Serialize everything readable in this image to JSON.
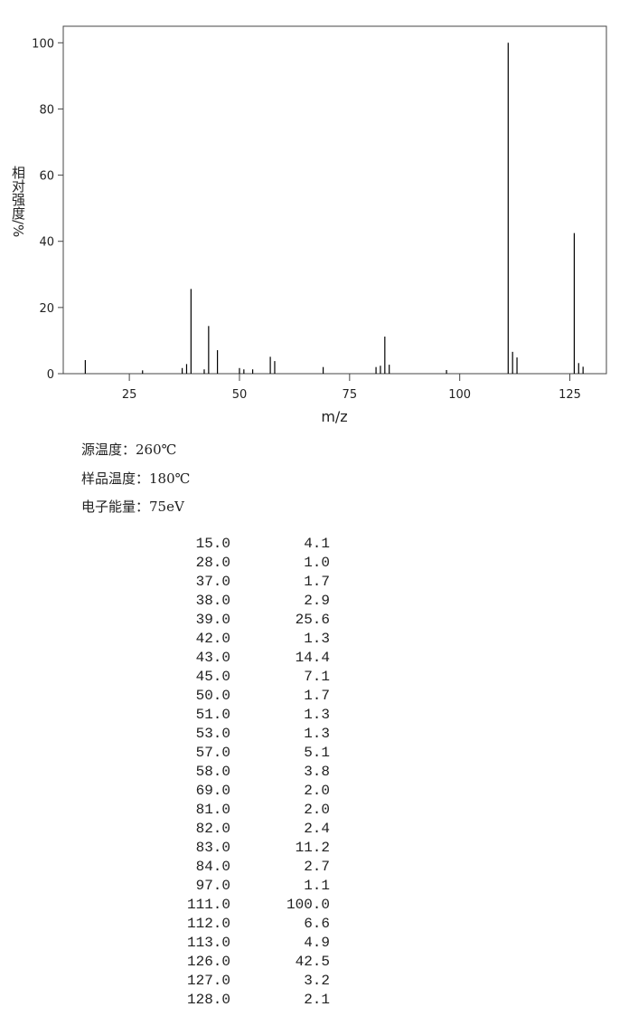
{
  "chart_data": {
    "type": "stick",
    "x_label": "m/z",
    "y_label": "相对强度/%",
    "x": [
      15,
      28,
      37,
      38,
      39,
      42,
      43,
      45,
      50,
      51,
      53,
      57,
      58,
      69,
      81,
      82,
      83,
      84,
      97,
      111,
      112,
      113,
      126,
      127,
      128
    ],
    "values": [
      4.1,
      1.0,
      1.7,
      2.9,
      25.6,
      1.3,
      14.4,
      7.1,
      1.7,
      1.3,
      1.3,
      5.1,
      3.8,
      2.0,
      2.0,
      2.4,
      11.2,
      2.7,
      1.1,
      100.0,
      6.6,
      4.9,
      42.5,
      3.2,
      2.1
    ],
    "color": "#000000",
    "xlim": [
      10,
      133.3
    ],
    "ylim": [
      0,
      105
    ],
    "xticks": [
      25,
      50,
      75,
      100,
      125
    ],
    "yticks": [
      0,
      20,
      40,
      60,
      80,
      100
    ]
  },
  "conditions": [
    "源温度：260℃",
    "样品温度：180℃",
    "电子能量：75eV"
  ],
  "peak_table": {
    "rows": [
      [
        "15.0",
        "4.1"
      ],
      [
        "28.0",
        "1.0"
      ],
      [
        "37.0",
        "1.7"
      ],
      [
        "38.0",
        "2.9"
      ],
      [
        "39.0",
        "25.6"
      ],
      [
        "42.0",
        "1.3"
      ],
      [
        "43.0",
        "14.4"
      ],
      [
        "45.0",
        "7.1"
      ],
      [
        "50.0",
        "1.7"
      ],
      [
        "51.0",
        "1.3"
      ],
      [
        "53.0",
        "1.3"
      ],
      [
        "57.0",
        "5.1"
      ],
      [
        "58.0",
        "3.8"
      ],
      [
        "69.0",
        "2.0"
      ],
      [
        "81.0",
        "2.0"
      ],
      [
        "82.0",
        "2.4"
      ],
      [
        "83.0",
        "11.2"
      ],
      [
        "84.0",
        "2.7"
      ],
      [
        "97.0",
        "1.1"
      ],
      [
        "111.0",
        "100.0"
      ],
      [
        "112.0",
        "6.6"
      ],
      [
        "113.0",
        "4.9"
      ],
      [
        "126.0",
        "42.5"
      ],
      [
        "127.0",
        "3.2"
      ],
      [
        "128.0",
        "2.1"
      ]
    ]
  }
}
